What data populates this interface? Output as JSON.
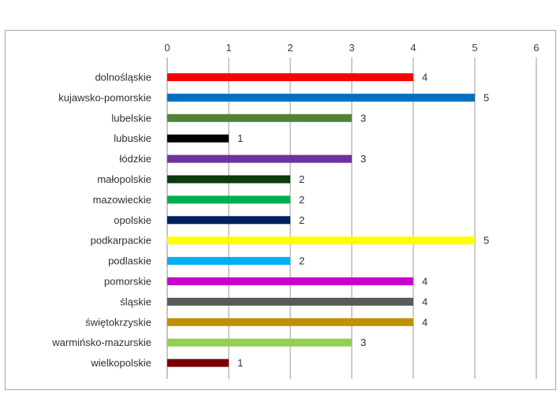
{
  "chart_data": {
    "type": "bar",
    "orientation": "horizontal",
    "title": "",
    "xlabel": "",
    "ylabel": "",
    "xlim": [
      0,
      6
    ],
    "ticks": [
      "0",
      "1",
      "2",
      "3",
      "4",
      "5",
      "6"
    ],
    "grid": true,
    "legend": "none",
    "categories": [
      "dolnośląskie",
      "kujawsko-pomorskie",
      "lubelskie",
      "lubuskie",
      "łódzkie",
      "małopolskie",
      "mazowieckie",
      "opolskie",
      "podkarpackie",
      "podlaskie",
      "pomorskie",
      "śląskie",
      "świętokrzyskie",
      "warmińsko-mazurskie",
      "wielkopolskie"
    ],
    "values": [
      4,
      5,
      3,
      1,
      3,
      2,
      2,
      2,
      5,
      2,
      4,
      4,
      4,
      3,
      1
    ],
    "value_labels": [
      "4",
      "5",
      "3",
      "1",
      "3",
      "2",
      "2",
      "2",
      "5",
      "2",
      "4",
      "4",
      "4",
      "3",
      "1"
    ],
    "colors": [
      "#ff0000",
      "#0070c0",
      "#548235",
      "#000000",
      "#7030a0",
      "#0d3b0d",
      "#00b050",
      "#002060",
      "#ffff00",
      "#00b0f0",
      "#cc00cc",
      "#595959",
      "#bf9000",
      "#92d050",
      "#7b0000"
    ]
  }
}
